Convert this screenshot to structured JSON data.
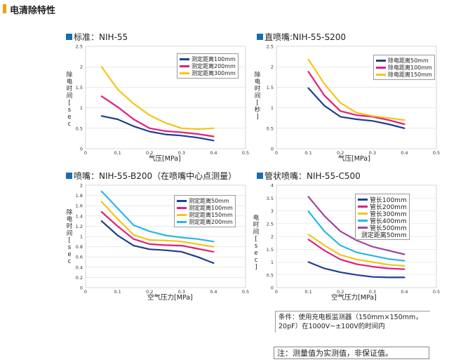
{
  "header": {
    "title": "电清除特性"
  },
  "panels": [
    {
      "title": "标准：NIH-55",
      "ylabel": "除电时间[sec",
      "xlabel": "气压[MPa]"
    },
    {
      "title": "直喷嘴:NIH-55-S200",
      "ylabel": "除电时间[秒]",
      "xlabel": "气压[MPa]"
    },
    {
      "title": "喷嘴：NIH-55-B200（在喷嘴中心点测量）",
      "ylabel": "除电时间[sec",
      "xlabel": "空气压力[MPa]"
    },
    {
      "title": "管状喷嘴：NIH-55-C500",
      "ylabel": "电时间[sec]",
      "xlabel": "空气压力[MPa]",
      "legend_footer": "测定距离50mm"
    }
  ],
  "chart_data": [
    {
      "type": "line",
      "title": "标准：NIH-55",
      "xlabel": "气压[MPa]",
      "ylabel": "除电时间[sec",
      "xlim": [
        0,
        0.5
      ],
      "ylim": [
        0,
        2.5
      ],
      "xticks": [
        "0",
        "0.1",
        "0.2",
        "0.3",
        "0.4",
        "0.5"
      ],
      "yticks": [
        "0",
        "0.5",
        "1",
        "1.5",
        "2",
        "2.5"
      ],
      "grid": true,
      "legend_position": "top-right",
      "series": [
        {
          "name": "测定距离100mm",
          "color": "#1e3f8f",
          "x": [
            0.05,
            0.1,
            0.15,
            0.2,
            0.25,
            0.3,
            0.35,
            0.4
          ],
          "y": [
            0.8,
            0.72,
            0.55,
            0.42,
            0.35,
            0.32,
            0.27,
            0.2
          ]
        },
        {
          "name": "测定距离200mm",
          "color": "#e0207a",
          "x": [
            0.05,
            0.1,
            0.15,
            0.2,
            0.25,
            0.3,
            0.35,
            0.4
          ],
          "y": [
            1.28,
            1.02,
            0.72,
            0.5,
            0.43,
            0.4,
            0.36,
            0.3
          ]
        },
        {
          "name": "测定距离300mm",
          "color": "#f5c518",
          "x": [
            0.05,
            0.1,
            0.15,
            0.2,
            0.25,
            0.3,
            0.35,
            0.4
          ],
          "y": [
            2.0,
            1.45,
            1.1,
            0.82,
            0.63,
            0.5,
            0.48,
            0.5
          ]
        }
      ]
    },
    {
      "type": "line",
      "title": "直喷嘴:NIH-55-S200",
      "xlabel": "气压[MPa]",
      "ylabel": "除电时间[秒]",
      "xlim": [
        0,
        0.5
      ],
      "ylim": [
        0,
        2.5
      ],
      "xticks": [
        "0",
        "0.1",
        "0.2",
        "0.3",
        "0.4",
        "0.5"
      ],
      "yticks": [
        "0",
        "0.5",
        "1",
        "1.5",
        "2",
        "2.5"
      ],
      "grid": true,
      "legend_position": "top-right",
      "series": [
        {
          "name": "除电距离50mm",
          "color": "#1e3f8f",
          "x": [
            0.1,
            0.15,
            0.2,
            0.25,
            0.3,
            0.35,
            0.4
          ],
          "y": [
            1.48,
            1.05,
            0.78,
            0.72,
            0.68,
            0.6,
            0.5
          ]
        },
        {
          "name": "除电距离100mm",
          "color": "#e0207a",
          "x": [
            0.1,
            0.15,
            0.2,
            0.25,
            0.3,
            0.35,
            0.4
          ],
          "y": [
            1.88,
            1.3,
            0.92,
            0.82,
            0.78,
            0.7,
            0.6
          ]
        },
        {
          "name": "除电距离150mm",
          "color": "#f5c518",
          "x": [
            0.1,
            0.15,
            0.2,
            0.25,
            0.3,
            0.35,
            0.4
          ],
          "y": [
            2.18,
            1.58,
            1.12,
            0.88,
            0.8,
            0.75,
            0.7
          ]
        }
      ]
    },
    {
      "type": "line",
      "title": "喷嘴：NIH-55-B200（在喷嘴中心点测量）",
      "xlabel": "空气压力[MPa]",
      "ylabel": "除电时间[sec",
      "xlim": [
        0,
        0.5
      ],
      "ylim": [
        0,
        2
      ],
      "xticks": [
        "0",
        "0.1",
        "0.2",
        "0.3",
        "0.4",
        "0.5"
      ],
      "yticks": [
        "0",
        "0.2",
        "0.4",
        "0.6",
        "0.8",
        "1",
        "1.2",
        "1.4",
        "1.6",
        "1.8",
        "2"
      ],
      "grid": true,
      "legend_position": "top-right",
      "series": [
        {
          "name": "测定距离50mm",
          "color": "#1e3f8f",
          "x": [
            0.05,
            0.1,
            0.15,
            0.2,
            0.25,
            0.3,
            0.35,
            0.4
          ],
          "y": [
            1.3,
            1.02,
            0.82,
            0.75,
            0.73,
            0.7,
            0.6,
            0.48
          ]
        },
        {
          "name": "测定距离100mm",
          "color": "#e0207a",
          "x": [
            0.05,
            0.1,
            0.15,
            0.2,
            0.25,
            0.3,
            0.35,
            0.4
          ],
          "y": [
            1.48,
            1.2,
            0.95,
            0.85,
            0.83,
            0.82,
            0.76,
            0.7
          ]
        },
        {
          "name": "测定距离150mm",
          "color": "#f5c518",
          "x": [
            0.05,
            0.1,
            0.15,
            0.2,
            0.25,
            0.3,
            0.35,
            0.4
          ],
          "y": [
            1.68,
            1.34,
            1.03,
            0.93,
            0.92,
            0.9,
            0.85,
            0.8
          ]
        },
        {
          "name": "测定距离200mm",
          "color": "#29b6e8",
          "x": [
            0.05,
            0.1,
            0.15,
            0.2,
            0.25,
            0.3,
            0.35,
            0.4
          ],
          "y": [
            1.88,
            1.55,
            1.22,
            1.1,
            1.02,
            0.98,
            0.95,
            0.9
          ]
        }
      ]
    },
    {
      "type": "line",
      "title": "管状喷嘴：NIH-55-C500",
      "xlabel": "空气压力[MPa]",
      "ylabel": "电时间[sec]",
      "xlim": [
        0,
        0.5
      ],
      "ylim": [
        0,
        4
      ],
      "xticks": [
        "0",
        "0.1",
        "0.2",
        "0.3",
        "0.4",
        "0.5"
      ],
      "yticks": [
        "0",
        "0.5",
        "1",
        "1.5",
        "2",
        "2.5",
        "3",
        "3.5",
        "4"
      ],
      "grid": true,
      "legend_position": "top-right",
      "series": [
        {
          "name": "管长100mm",
          "color": "#1e3f8f",
          "x": [
            0.1,
            0.15,
            0.2,
            0.25,
            0.3,
            0.35,
            0.4
          ],
          "y": [
            1.0,
            0.75,
            0.6,
            0.5,
            0.42,
            0.4,
            0.4
          ]
        },
        {
          "name": "管长200mm",
          "color": "#e0207a",
          "x": [
            0.1,
            0.15,
            0.2,
            0.25,
            0.3,
            0.35,
            0.4
          ],
          "y": [
            1.88,
            1.45,
            1.1,
            0.92,
            0.82,
            0.75,
            0.72
          ]
        },
        {
          "name": "管长300mm",
          "color": "#f5c518",
          "x": [
            0.1,
            0.15,
            0.2,
            0.25,
            0.3,
            0.35,
            0.4
          ],
          "y": [
            2.08,
            1.65,
            1.28,
            1.1,
            1.0,
            0.9,
            0.85
          ]
        },
        {
          "name": "管长400mm",
          "color": "#29b6e8",
          "x": [
            0.1,
            0.15,
            0.2,
            0.25,
            0.3,
            0.35,
            0.4
          ],
          "y": [
            2.98,
            2.2,
            1.65,
            1.38,
            1.25,
            1.12,
            1.05
          ]
        },
        {
          "name": "管长500mm",
          "color": "#a0449b",
          "x": [
            0.1,
            0.15,
            0.2,
            0.25,
            0.3,
            0.35,
            0.4
          ],
          "y": [
            3.55,
            2.8,
            2.2,
            1.85,
            1.6,
            1.45,
            1.3
          ]
        }
      ]
    }
  ],
  "notes": {
    "condition": "条件：使用充电板监测器（150mm×150mm，20pF）在1000V~±100V的时间内",
    "disclaimer": "注：测量值为实测值，非保证值。"
  }
}
